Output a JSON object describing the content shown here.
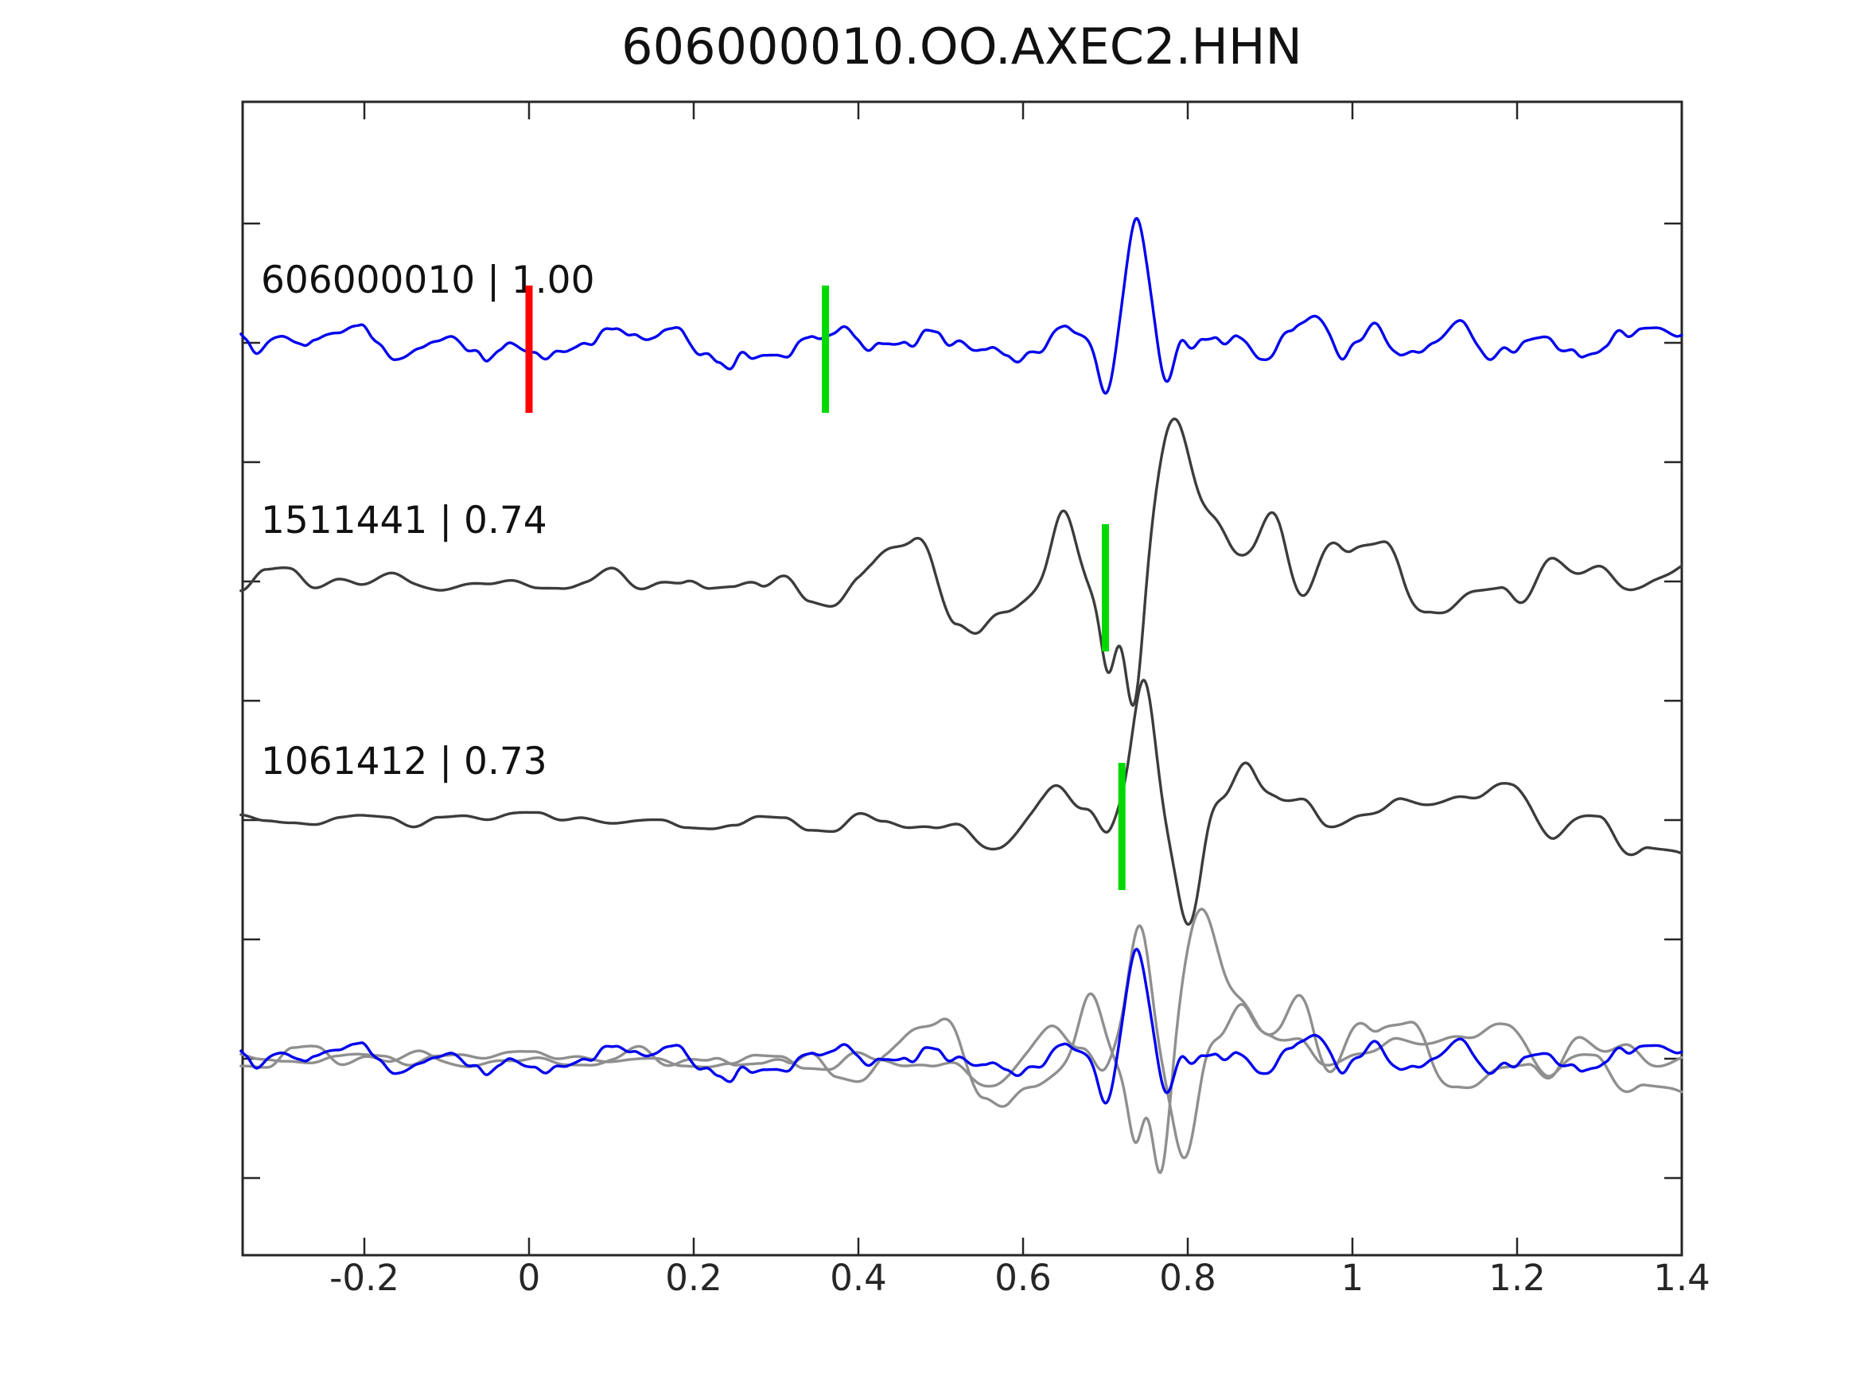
{
  "title": "606000010.OO.AXEC2.HHN",
  "colors": {
    "blue": "#0000ee",
    "dark_gray": "#3c3c3c",
    "light_gray": "#8f8f8f",
    "green": "#00d900",
    "red": "#ff0000",
    "axis": "#262626",
    "background": "#ffffff"
  },
  "chart_data": {
    "type": "line",
    "title": "606000010.OO.AXEC2.HHN",
    "xlabel": "",
    "ylabel": "",
    "xlim": [
      -0.35,
      1.4
    ],
    "xticks": [
      -0.2,
      0,
      0.2,
      0.4,
      0.6,
      0.8,
      1,
      1.2,
      1.4
    ],
    "xtick_labels": [
      "-0.2",
      "0",
      "0.2",
      "0.4",
      "0.6",
      "0.8",
      "1",
      "1.2",
      "1.4"
    ],
    "grid": false,
    "legend_position": "none",
    "description": "Template waveform (blue, top) with two detected event waveforms (dark gray) and an aligned overlay of all traces (bottom). Red bar = template origin time (0 s); green bars = pick times.",
    "rows": [
      {
        "id": "606000010",
        "label": "606000010 | 1.00",
        "correlation": 1.0,
        "role": "template",
        "picks": [
          {
            "x": 0.0,
            "color": "red"
          },
          {
            "x": 0.36,
            "color": "green"
          }
        ],
        "components": [
          {
            "color": "blue",
            "seed": 7,
            "amp_scale": 1,
            "x_shift": 0,
            "noise_bands": [
              {
                "grid": 0.034,
                "envelope": [
                  [
                    -0.35,
                    24
                  ],
                  [
                    1.4,
                    24
                  ]
                ]
              },
              {
                "grid": 0.014,
                "envelope": [
                  [
                    -0.35,
                    9
                  ],
                  [
                    1.4,
                    9
                  ]
                ]
              }
            ],
            "wavelets": [
              [
                0.739,
                170,
                0.02
              ],
              [
                0.7,
                -64,
                0.013
              ],
              [
                0.774,
                -56,
                0.014
              ],
              [
                0.95,
                30,
                0.025
              ],
              [
                1.13,
                40,
                0.02
              ]
            ]
          }
        ]
      },
      {
        "id": "1511441",
        "label": "1511441 | 0.74",
        "correlation": 0.74,
        "role": "detection",
        "picks": [
          {
            "x": 0.7,
            "color": "green"
          }
        ],
        "components": [
          {
            "color": "dark_gray",
            "seed": 13,
            "amp_scale": 1,
            "x_shift": 0,
            "noise_bands": [
              {
                "grid": 0.03,
                "envelope": [
                  [
                    -0.35,
                    15
                  ],
                  [
                    0.2,
                    17
                  ],
                  [
                    0.45,
                    22
                  ],
                  [
                    1.4,
                    20
                  ]
                ]
              },
              {
                "grid": 0.052,
                "envelope": [
                  [
                    -0.35,
                    8
                  ],
                  [
                    0.25,
                    12
                  ],
                  [
                    0.4,
                    45
                  ],
                  [
                    0.5,
                    70
                  ],
                  [
                    0.58,
                    95
                  ],
                  [
                    0.92,
                    95
                  ],
                  [
                    1.05,
                    70
                  ],
                  [
                    1.2,
                    60
                  ],
                  [
                    1.4,
                    48
                  ]
                ]
              }
            ],
            "wavelets": [
              [
                0.648,
                110,
                0.022
              ],
              [
                0.704,
                -105,
                0.013
              ],
              [
                0.734,
                -195,
                0.016
              ],
              [
                0.783,
                125,
                0.026
              ],
              [
                0.905,
                75,
                0.02
              ]
            ]
          }
        ]
      },
      {
        "id": "1061412",
        "label": "1061412 | 0.73",
        "correlation": 0.73,
        "role": "detection",
        "picks": [
          {
            "x": 0.72,
            "color": "green"
          }
        ],
        "components": [
          {
            "color": "dark_gray",
            "seed": 21,
            "amp_scale": 1,
            "x_shift": 0,
            "noise_bands": [
              {
                "grid": 0.03,
                "envelope": [
                  [
                    -0.35,
                    8
                  ],
                  [
                    0.35,
                    9
                  ],
                  [
                    0.5,
                    14
                  ],
                  [
                    0.7,
                    18
                  ],
                  [
                    1.4,
                    15
                  ]
                ]
              },
              {
                "grid": 0.052,
                "envelope": [
                  [
                    -0.35,
                    3
                  ],
                  [
                    0.42,
                    6
                  ],
                  [
                    0.55,
                    28
                  ],
                  [
                    0.68,
                    40
                  ],
                  [
                    0.78,
                    25
                  ],
                  [
                    0.9,
                    60
                  ],
                  [
                    1.05,
                    68
                  ],
                  [
                    1.25,
                    62
                  ],
                  [
                    1.4,
                    50
                  ]
                ]
              }
            ],
            "wavelets": [
              [
                0.7,
                -52,
                0.016
              ],
              [
                0.748,
                175,
                0.019
              ],
              [
                0.803,
                -150,
                0.022
              ],
              [
                0.87,
                55,
                0.02
              ]
            ]
          }
        ]
      },
      {
        "id": "overlay",
        "label": null,
        "role": "aligned-overlay",
        "picks": [],
        "components": [
          {
            "color": "light_gray",
            "seed": 13,
            "amp_scale": 0.92,
            "x_shift": 0.033,
            "noise_bands": [
              {
                "grid": 0.03,
                "envelope": [
                  [
                    -0.35,
                    15
                  ],
                  [
                    0.2,
                    17
                  ],
                  [
                    0.45,
                    22
                  ],
                  [
                    1.4,
                    20
                  ]
                ]
              },
              {
                "grid": 0.052,
                "envelope": [
                  [
                    -0.35,
                    8
                  ],
                  [
                    0.25,
                    12
                  ],
                  [
                    0.4,
                    45
                  ],
                  [
                    0.5,
                    70
                  ],
                  [
                    0.58,
                    95
                  ],
                  [
                    0.92,
                    95
                  ],
                  [
                    1.05,
                    70
                  ],
                  [
                    1.2,
                    60
                  ],
                  [
                    1.4,
                    48
                  ]
                ]
              }
            ],
            "wavelets": [
              [
                0.648,
                110,
                0.022
              ],
              [
                0.704,
                -105,
                0.013
              ],
              [
                0.734,
                -195,
                0.016
              ],
              [
                0.783,
                125,
                0.026
              ],
              [
                0.905,
                75,
                0.02
              ]
            ]
          },
          {
            "color": "light_gray",
            "seed": 21,
            "amp_scale": 0.95,
            "x_shift": -0.005,
            "noise_bands": [
              {
                "grid": 0.03,
                "envelope": [
                  [
                    -0.35,
                    8
                  ],
                  [
                    0.35,
                    9
                  ],
                  [
                    0.5,
                    14
                  ],
                  [
                    0.7,
                    18
                  ],
                  [
                    1.4,
                    15
                  ]
                ]
              },
              {
                "grid": 0.052,
                "envelope": [
                  [
                    -0.35,
                    3
                  ],
                  [
                    0.42,
                    6
                  ],
                  [
                    0.55,
                    28
                  ],
                  [
                    0.68,
                    40
                  ],
                  [
                    0.78,
                    25
                  ],
                  [
                    0.9,
                    60
                  ],
                  [
                    1.05,
                    68
                  ],
                  [
                    1.25,
                    62
                  ],
                  [
                    1.4,
                    50
                  ]
                ]
              }
            ],
            "wavelets": [
              [
                0.7,
                -52,
                0.016
              ],
              [
                0.748,
                175,
                0.019
              ],
              [
                0.803,
                -150,
                0.022
              ],
              [
                0.87,
                55,
                0.02
              ]
            ]
          },
          {
            "color": "blue",
            "seed": 7,
            "amp_scale": 0.88,
            "x_shift": 0,
            "noise_bands": [
              {
                "grid": 0.034,
                "envelope": [
                  [
                    -0.35,
                    24
                  ],
                  [
                    1.4,
                    24
                  ]
                ]
              },
              {
                "grid": 0.014,
                "envelope": [
                  [
                    -0.35,
                    9
                  ],
                  [
                    1.4,
                    9
                  ]
                ]
              }
            ],
            "wavelets": [
              [
                0.739,
                170,
                0.02
              ],
              [
                0.7,
                -64,
                0.013
              ],
              [
                0.774,
                -56,
                0.014
              ],
              [
                0.95,
                30,
                0.025
              ],
              [
                1.13,
                40,
                0.02
              ]
            ]
          }
        ]
      }
    ]
  }
}
